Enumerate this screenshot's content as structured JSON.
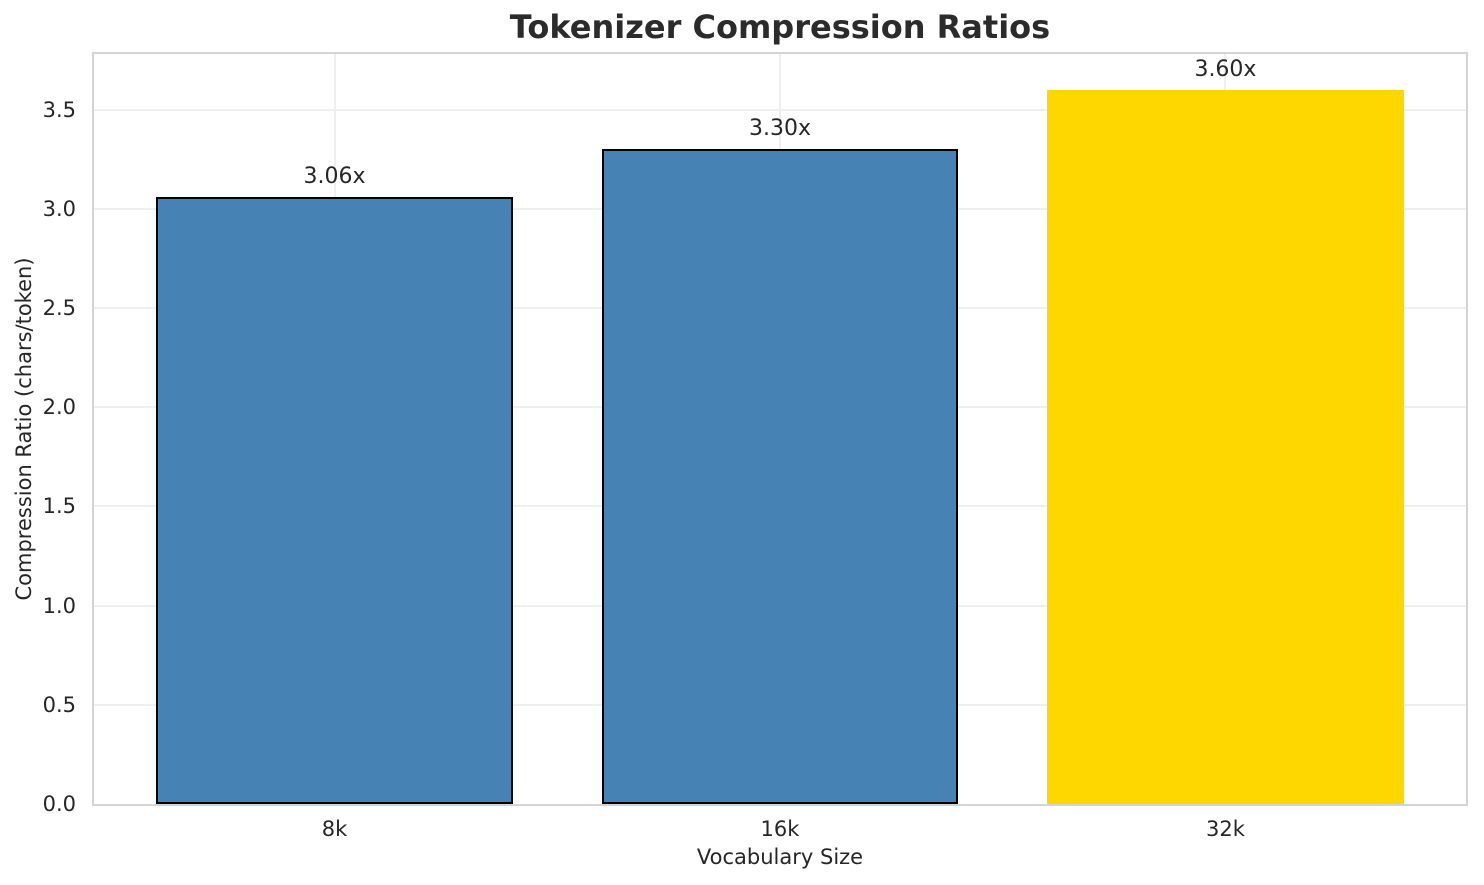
{
  "chart_data": {
    "type": "bar",
    "title": "Tokenizer Compression Ratios",
    "xlabel": "Vocabulary Size",
    "ylabel": "Compression Ratio (chars/token)",
    "categories": [
      "8k",
      "16k",
      "32k"
    ],
    "values": [
      3.06,
      3.3,
      3.6
    ],
    "bar_labels": [
      "3.06x",
      "3.30x",
      "3.60x"
    ],
    "bar_colors": [
      "#4682B4",
      "#4682B4",
      "#FFD700"
    ],
    "bar_edge_colors": [
      "#000000",
      "#000000",
      "none"
    ],
    "ylim": [
      0,
      3.78
    ],
    "yticks": [
      0.0,
      0.5,
      1.0,
      1.5,
      2.0,
      2.5,
      3.0,
      3.5
    ],
    "ytick_labels": [
      "0.0",
      "0.5",
      "1.0",
      "1.5",
      "2.0",
      "2.5",
      "3.0",
      "3.5"
    ],
    "bar_width_fraction": 0.8,
    "grid": true,
    "legend": "none",
    "colors": {
      "background": "#ffffff",
      "grid": "#efefef",
      "spine": "#d4d4d4",
      "text": "#262626",
      "title_text": "#2b2b2b",
      "bar_default": "#4682B4",
      "bar_highlight": "#FFD700",
      "bar_edge": "#000000"
    }
  }
}
